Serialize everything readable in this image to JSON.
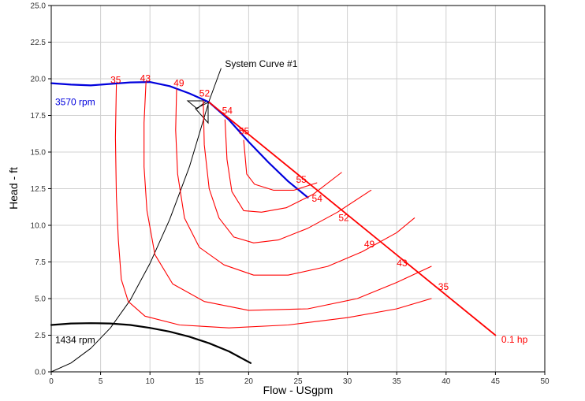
{
  "chart_data": {
    "type": "line",
    "xlabel": "Flow - USgpm",
    "ylabel": "Head - ft",
    "xlim": [
      0,
      50
    ],
    "ylim": [
      0,
      25
    ],
    "xticks": [
      "0",
      "5",
      "10",
      "15",
      "20",
      "25",
      "30",
      "35",
      "40",
      "45",
      "50"
    ],
    "yticks": [
      "0.0",
      "2.5",
      "5.0",
      "7.5",
      "10.0",
      "12.5",
      "15.0",
      "17.5",
      "20.0",
      "22.5",
      "25.0"
    ],
    "grid": true,
    "colors": {
      "pump_high": "#0000dd",
      "pump_low": "#000000",
      "efficiency": "#ff0000",
      "system": "#000000",
      "grid": "#d0d0d0"
    },
    "series": [
      {
        "name": "3570 rpm",
        "color": "#0000dd",
        "x": [
          0,
          2,
          4,
          6,
          8,
          10,
          12,
          14,
          16,
          18,
          20,
          22,
          24,
          26
        ],
        "y": [
          19.7,
          19.6,
          19.55,
          19.65,
          19.75,
          19.78,
          19.5,
          19.0,
          18.4,
          17.2,
          15.7,
          14.3,
          13.0,
          11.9
        ]
      },
      {
        "name": "1434 rpm",
        "color": "#000000",
        "x": [
          0,
          2,
          4,
          6,
          8,
          10,
          12,
          14,
          16,
          18,
          20.2
        ],
        "y": [
          3.2,
          3.3,
          3.32,
          3.3,
          3.2,
          3.0,
          2.75,
          2.4,
          1.95,
          1.4,
          0.6
        ]
      },
      {
        "name": "System Curve #1",
        "color": "#000000",
        "x": [
          0,
          2,
          4,
          6,
          8,
          10,
          12,
          14,
          16,
          17.2
        ],
        "y": [
          0,
          0.6,
          1.6,
          3.0,
          4.9,
          7.4,
          10.4,
          14.0,
          18.5,
          20.7
        ]
      },
      {
        "name": "35",
        "color": "#ff0000",
        "x": [
          6.6,
          6.5,
          6.6,
          6.8,
          7.1,
          7.8,
          9.5,
          13,
          18,
          24,
          30,
          35,
          38.5
        ],
        "y": [
          19.6,
          16,
          12,
          9,
          6.3,
          4.8,
          3.8,
          3.2,
          3.0,
          3.2,
          3.7,
          4.3,
          5.0
        ]
      },
      {
        "name": "43",
        "color": "#ff0000",
        "x": [
          9.6,
          9.4,
          9.4,
          9.7,
          10.5,
          12.3,
          15.5,
          20,
          26,
          31,
          35,
          38.5
        ],
        "y": [
          19.8,
          17.0,
          14.0,
          11.0,
          8.0,
          6.0,
          4.8,
          4.2,
          4.3,
          5.0,
          6.1,
          7.2
        ]
      },
      {
        "name": "49",
        "color": "#ff0000",
        "x": [
          12.7,
          12.6,
          12.8,
          13.5,
          15,
          17.5,
          20.5,
          24,
          28,
          31.5,
          35,
          36.8
        ],
        "y": [
          19.3,
          16.5,
          13.5,
          10.5,
          8.5,
          7.3,
          6.6,
          6.6,
          7.2,
          8.2,
          9.5,
          10.5
        ]
      },
      {
        "name": "52",
        "color": "#ff0000",
        "x": [
          15.4,
          15.5,
          16.0,
          17.0,
          18.5,
          20.5,
          23,
          26,
          29,
          32.4
        ],
        "y": [
          18.5,
          15.5,
          12.5,
          10.5,
          9.2,
          8.8,
          9.0,
          9.8,
          10.9,
          12.4
        ]
      },
      {
        "name": "54",
        "color": "#ff0000",
        "x": [
          17.6,
          17.8,
          18.3,
          19.5,
          21.3,
          23.8,
          26.5,
          29.4
        ],
        "y": [
          17.2,
          14.5,
          12.3,
          11.0,
          10.9,
          11.2,
          12.1,
          13.6
        ]
      },
      {
        "name": "55",
        "color": "#ff0000",
        "x": [
          19.5,
          19.8,
          20.6,
          22.5,
          24.6,
          26.9
        ],
        "y": [
          15.8,
          13.5,
          12.8,
          12.4,
          12.4,
          12.9
        ]
      },
      {
        "name": "0.1 hp",
        "color": "#ff0000",
        "x": [
          16.0,
          45.0
        ],
        "y": [
          18.4,
          2.5
        ]
      }
    ],
    "annotations": [
      {
        "text": "3570 rpm",
        "x": 0.4,
        "y": 18.2,
        "color": "#0000dd"
      },
      {
        "text": "1434 rpm",
        "x": 0.4,
        "y": 1.95,
        "color": "#000000"
      },
      {
        "text": "System Curve #1",
        "x": 17.6,
        "y": 20.8,
        "color": "#000000"
      },
      {
        "text": "35",
        "x": 6.0,
        "y": 19.7,
        "color": "#ff0000"
      },
      {
        "text": "43",
        "x": 9.0,
        "y": 19.8,
        "color": "#ff0000"
      },
      {
        "text": "49",
        "x": 12.4,
        "y": 19.5,
        "color": "#ff0000"
      },
      {
        "text": "52",
        "x": 15.0,
        "y": 18.8,
        "color": "#ff0000"
      },
      {
        "text": "54",
        "x": 17.3,
        "y": 17.6,
        "color": "#ff0000"
      },
      {
        "text": "55",
        "x": 19.0,
        "y": 16.2,
        "color": "#ff0000"
      },
      {
        "text": "55",
        "x": 24.8,
        "y": 12.9,
        "color": "#ff0000"
      },
      {
        "text": "54",
        "x": 26.4,
        "y": 11.6,
        "color": "#ff0000"
      },
      {
        "text": "52",
        "x": 29.1,
        "y": 10.3,
        "color": "#ff0000"
      },
      {
        "text": "49",
        "x": 31.7,
        "y": 8.5,
        "color": "#ff0000"
      },
      {
        "text": "43",
        "x": 35.0,
        "y": 7.2,
        "color": "#ff0000"
      },
      {
        "text": "35",
        "x": 39.2,
        "y": 5.6,
        "color": "#ff0000"
      },
      {
        "text": "0.1 hp",
        "x": 45.6,
        "y": 2.0,
        "color": "#ff0000"
      }
    ]
  }
}
